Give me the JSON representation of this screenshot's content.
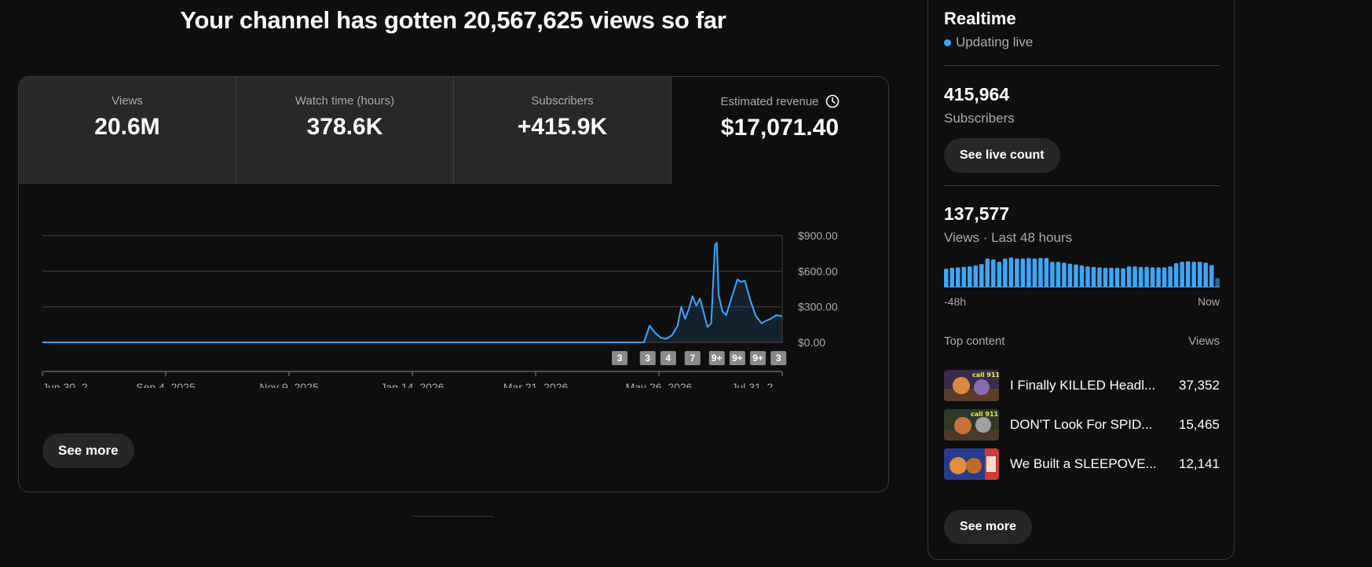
{
  "headline": "Your channel has gotten 20,567,625 views so far",
  "metrics": [
    {
      "label": "Views",
      "value": "20.6M"
    },
    {
      "label": "Watch time (hours)",
      "value": "378.6K"
    },
    {
      "label": "Subscribers",
      "value": "+415.9K"
    },
    {
      "label": "Estimated revenue",
      "value": "$17,071.40",
      "icon": "clock-icon"
    }
  ],
  "see_more_label": "See more",
  "chart_data": {
    "type": "line",
    "series": [
      {
        "name": "Estimated revenue",
        "color": "#3ea6ff"
      }
    ],
    "yticks": [
      "$900.00",
      "$600.00",
      "$300.00",
      "$0.00"
    ],
    "ylim": [
      0,
      900
    ],
    "xticks": [
      "Jun 30, 2...",
      "Sep 4, 2025",
      "Nov 9, 2025",
      "Jan 14, 2026",
      "Mar 21, 2026",
      "May 26, 2026",
      "Jul 31, 2..."
    ],
    "x_start": "2025-06-30",
    "x_end": "2026-07-31",
    "points": [
      [
        "2025-06-30",
        0
      ],
      [
        "2026-05-18",
        0
      ],
      [
        "2026-05-21",
        140
      ],
      [
        "2026-05-24",
        80
      ],
      [
        "2026-05-27",
        40
      ],
      [
        "2026-05-30",
        30
      ],
      [
        "2026-06-02",
        60
      ],
      [
        "2026-06-05",
        140
      ],
      [
        "2026-06-07",
        300
      ],
      [
        "2026-06-09",
        200
      ],
      [
        "2026-06-11",
        280
      ],
      [
        "2026-06-13",
        390
      ],
      [
        "2026-06-15",
        310
      ],
      [
        "2026-06-17",
        370
      ],
      [
        "2026-06-19",
        250
      ],
      [
        "2026-06-21",
        130
      ],
      [
        "2026-06-23",
        160
      ],
      [
        "2026-06-25",
        820
      ],
      [
        "2026-06-26",
        840
      ],
      [
        "2026-06-27",
        400
      ],
      [
        "2026-06-29",
        260
      ],
      [
        "2026-07-01",
        230
      ],
      [
        "2026-07-04",
        380
      ],
      [
        "2026-07-07",
        530
      ],
      [
        "2026-07-09",
        510
      ],
      [
        "2026-07-11",
        520
      ],
      [
        "2026-07-14",
        350
      ],
      [
        "2026-07-17",
        220
      ],
      [
        "2026-07-20",
        160
      ],
      [
        "2026-07-22",
        180
      ],
      [
        "2026-07-25",
        200
      ],
      [
        "2026-07-28",
        230
      ],
      [
        "2026-07-31",
        220
      ]
    ],
    "markers": [
      {
        "label": "3",
        "date": "2026-05-05"
      },
      {
        "label": "3",
        "date": "2026-05-20"
      },
      {
        "label": "4",
        "date": "2026-05-31"
      },
      {
        "label": "7",
        "date": "2026-06-13"
      },
      {
        "label": "9+",
        "date": "2026-06-26"
      },
      {
        "label": "9+",
        "date": "2026-07-07"
      },
      {
        "label": "9+",
        "date": "2026-07-18"
      },
      {
        "label": "3",
        "date": "2026-07-29"
      }
    ]
  },
  "realtime": {
    "title": "Realtime",
    "status": "Updating live",
    "subscribers_value": "415,964",
    "subscribers_label": "Subscribers",
    "live_count_label": "See live count",
    "views_value": "137,577",
    "views_label": "Views · Last 48 hours",
    "bar_values": [
      40,
      42,
      43,
      44,
      45,
      47,
      50,
      62,
      60,
      55,
      62,
      64,
      62,
      62,
      63,
      62,
      63,
      63,
      55,
      55,
      53,
      51,
      49,
      47,
      45,
      44,
      43,
      42,
      42,
      42,
      41,
      45,
      45,
      44,
      44,
      43,
      43,
      43,
      45,
      52,
      55,
      56,
      55,
      55,
      53,
      48,
      20
    ],
    "axis_start": "-48h",
    "axis_end": "Now",
    "top_content_label": "Top content",
    "views_column_label": "Views",
    "top_content": [
      {
        "title": "I Finally KILLED Headl...",
        "views": "37,352"
      },
      {
        "title": "DON'T Look For SPID...",
        "views": "15,465"
      },
      {
        "title": "We Built a SLEEPOVE...",
        "views": "12,141"
      }
    ],
    "see_more_label": "See more"
  }
}
